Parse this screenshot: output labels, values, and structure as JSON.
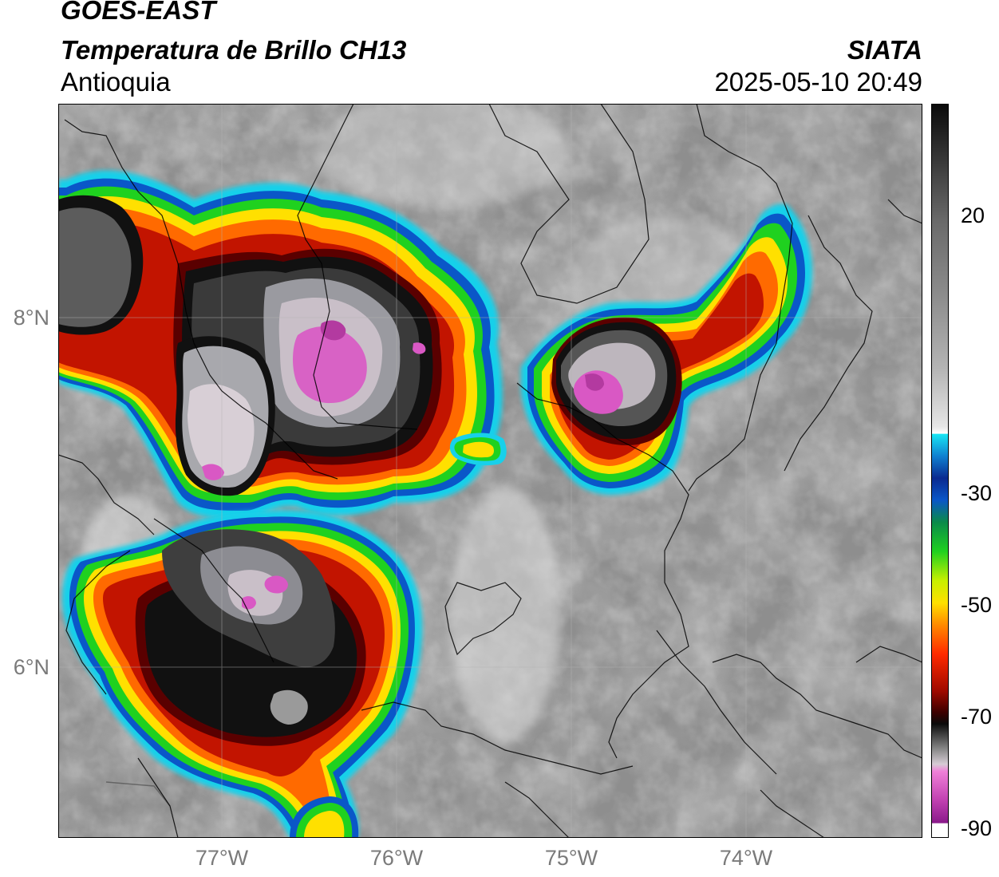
{
  "header": {
    "satellite": "GOES-EAST",
    "product": "Temperatura de Brillo CH13",
    "region": "Antioquia",
    "agency": "SIATA",
    "timestamp": "2025-05-10 20:49"
  },
  "axes": {
    "lat_labels": [
      "8°N",
      "6°N"
    ],
    "lon_labels": [
      "77°W",
      "76°W",
      "75°W",
      "74°W"
    ]
  },
  "colorbar": {
    "ticks": [
      "20",
      "-30",
      "-50",
      "-70",
      "-90"
    ],
    "unit": ""
  },
  "colors": {
    "pink": "#d958c4",
    "dark": "#1a1a1a",
    "red": "#c21400",
    "orange": "#ff6a00",
    "yellow": "#ffe000",
    "green": "#1fd11f",
    "blue": "#0a57c8",
    "cyan": "#18d0ea"
  }
}
